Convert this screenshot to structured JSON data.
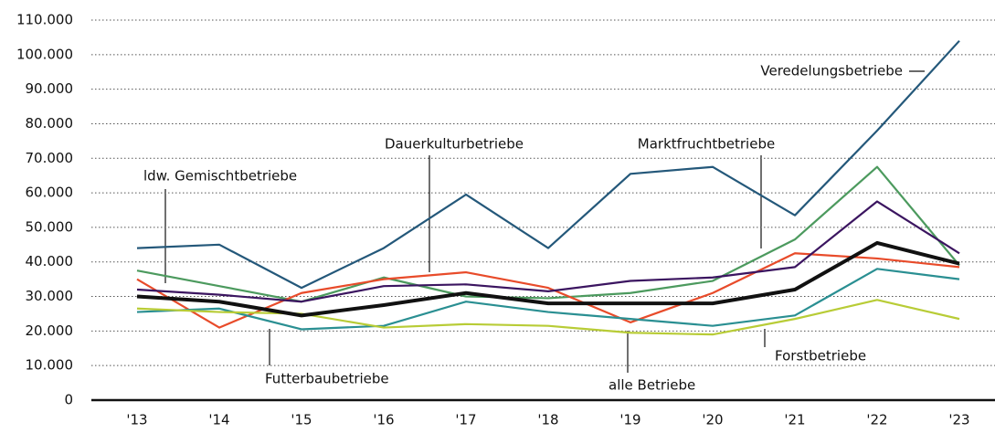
{
  "chart_data": {
    "type": "line",
    "categories": [
      "'13",
      "'14",
      "'15",
      "'16",
      "'17",
      "'18",
      "'19",
      "'20",
      "'21",
      "'22",
      "'23"
    ],
    "ylim": [
      0,
      110000
    ],
    "yticks": [
      0,
      {
        "value": 10000,
        "label": "10.000"
      },
      {
        "value": 20000,
        "label": "20.000"
      },
      {
        "value": 30000,
        "label": "30.000"
      },
      {
        "value": 40000,
        "label": "40.000"
      },
      {
        "value": 50000,
        "label": "50.000"
      },
      {
        "value": 60000,
        "label": "60.000"
      },
      {
        "value": 70000,
        "label": "70.000"
      },
      {
        "value": 80000,
        "label": "80.000"
      },
      {
        "value": 90000,
        "label": "90.000"
      },
      {
        "value": 100000,
        "label": "100.000"
      },
      {
        "value": 110000,
        "label": "110.000"
      }
    ],
    "grid": true,
    "series": [
      {
        "name": "Veredelungsbetriebe",
        "color": "#24587a",
        "values": [
          44000,
          45000,
          32500,
          44000,
          59500,
          44000,
          65500,
          67500,
          53500,
          78000,
          104000
        ]
      },
      {
        "name": "Marktfruchtbetriebe",
        "color": "#4c9a5e",
        "values": [
          37500,
          33000,
          28500,
          35500,
          30000,
          29500,
          31000,
          34500,
          46500,
          67500,
          39000
        ]
      },
      {
        "name": "Dauerkulturbetriebe",
        "color": "#e84b2a",
        "values": [
          35000,
          21000,
          31000,
          35000,
          37000,
          32500,
          22500,
          31000,
          42500,
          41000,
          38500
        ]
      },
      {
        "name": "ldw. Gemischtbetriebe",
        "color": "#3b1560",
        "values": [
          32000,
          30500,
          28500,
          33000,
          33500,
          31500,
          34500,
          35500,
          38500,
          57500,
          42500
        ]
      },
      {
        "name": "Futterbaubetriebe",
        "color": "#2a8f92",
        "values": [
          25500,
          26500,
          20500,
          21500,
          28500,
          25500,
          23500,
          21500,
          24500,
          38000,
          35000
        ]
      },
      {
        "name": "Forstbetriebe",
        "color": "#b8cc36",
        "values": [
          26500,
          25500,
          25000,
          21000,
          22000,
          21500,
          19500,
          19000,
          23500,
          29000,
          23500
        ]
      },
      {
        "name": "alle Betriebe",
        "color": "#111111",
        "values": [
          30000,
          28500,
          24500,
          27500,
          31000,
          28000,
          28000,
          28000,
          32000,
          45500,
          39500
        ]
      }
    ]
  }
}
